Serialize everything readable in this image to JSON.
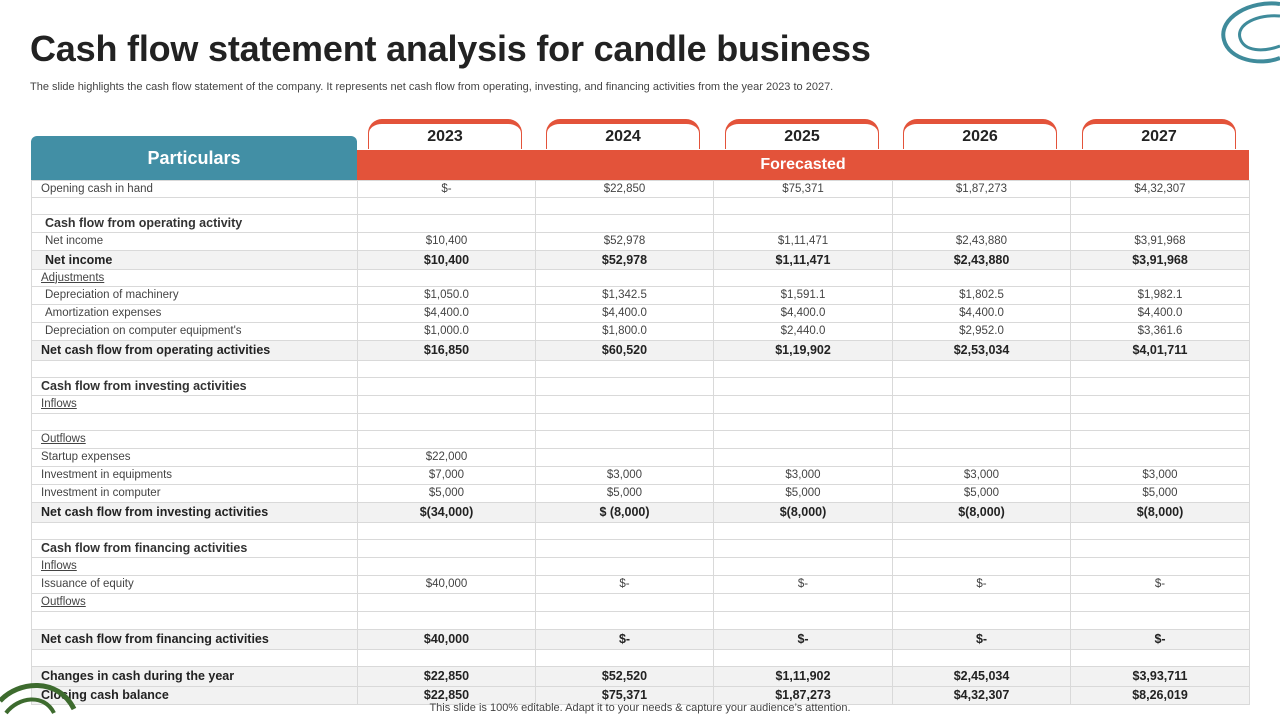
{
  "title": "Cash flow statement analysis for candle business",
  "subtitle": "The slide highlights the cash flow statement of the company. It represents net cash flow from operating, investing, and financing activities from the year 2023 to 2027.",
  "footer": "This slide is 100% editable. Adapt it to your needs & capture your audience’s attention.",
  "header": {
    "particulars": "Particulars",
    "forecasted": "Forecasted",
    "years": [
      "2023",
      "2024",
      "2025",
      "2026",
      "2027"
    ]
  },
  "colors": {
    "accent": "#e3533a",
    "teal": "#428fa5",
    "deco_green": "#3d6b2e"
  },
  "rows": [
    {
      "style": "normal",
      "label": "Opening cash in hand",
      "values": [
        "$-",
        "$22,850",
        "$75,371",
        "$1,87,273",
        "$4,32,307"
      ]
    },
    {
      "style": "blank",
      "label": "",
      "values": [
        "",
        "",
        "",
        "",
        ""
      ]
    },
    {
      "style": "sect-ind",
      "label": "Cash flow from operating activity",
      "values": [
        "",
        "",
        "",
        "",
        ""
      ]
    },
    {
      "style": "normal-ind",
      "label": "Net income",
      "values": [
        "$10,400",
        "$52,978",
        "$1,11,471",
        "$2,43,880",
        "$3,91,968"
      ]
    },
    {
      "style": "bold-ind",
      "label": "Net income",
      "values": [
        "$10,400",
        "$52,978",
        "$1,11,471",
        "$2,43,880",
        "$3,91,968"
      ]
    },
    {
      "style": "ul",
      "label": "Adjustments",
      "values": [
        "",
        "",
        "",
        "",
        ""
      ]
    },
    {
      "style": "normal-ind",
      "label": "Depreciation of machinery",
      "values": [
        "$1,050.0",
        "$1,342.5",
        "$1,591.1",
        "$1,802.5",
        "$1,982.1"
      ]
    },
    {
      "style": "normal-ind",
      "label": "Amortization expenses",
      "values": [
        "$4,400.0",
        "$4,400.0",
        "$4,400.0",
        "$4,400.0",
        "$4,400.0"
      ]
    },
    {
      "style": "normal-ind",
      "label": "Depreciation on computer equipment's",
      "values": [
        "$1,000.0",
        "$1,800.0",
        "$2,440.0",
        "$2,952.0",
        "$3,361.6"
      ]
    },
    {
      "style": "bold",
      "label": "Net cash flow from operating activities",
      "values": [
        "$16,850",
        "$60,520",
        "$1,19,902",
        "$2,53,034",
        "$4,01,711"
      ]
    },
    {
      "style": "blank",
      "label": "",
      "values": [
        "",
        "",
        "",
        "",
        ""
      ]
    },
    {
      "style": "sect",
      "label": "Cash flow from investing activities",
      "values": [
        "",
        "",
        "",
        "",
        ""
      ]
    },
    {
      "style": "ul",
      "label": "Inflows",
      "values": [
        "",
        "",
        "",
        "",
        ""
      ]
    },
    {
      "style": "blank",
      "label": "",
      "values": [
        "",
        "",
        "",
        "",
        ""
      ]
    },
    {
      "style": "ul",
      "label": "Outflows",
      "values": [
        "",
        "",
        "",
        "",
        ""
      ]
    },
    {
      "style": "normal",
      "label": "Startup expenses",
      "values": [
        "$22,000",
        "",
        "",
        "",
        ""
      ]
    },
    {
      "style": "normal",
      "label": "Investment in equipments",
      "values": [
        "$7,000",
        "$3,000",
        "$3,000",
        "$3,000",
        "$3,000"
      ]
    },
    {
      "style": "normal",
      "label": "Investment in computer",
      "values": [
        "$5,000",
        "$5,000",
        "$5,000",
        "$5,000",
        "$5,000"
      ]
    },
    {
      "style": "bold",
      "label": "Net cash flow from investing activities",
      "values": [
        "$(34,000)",
        "$ (8,000)",
        "$(8,000)",
        "$(8,000)",
        "$(8,000)"
      ]
    },
    {
      "style": "blank",
      "label": "",
      "values": [
        "",
        "",
        "",
        "",
        ""
      ]
    },
    {
      "style": "sect",
      "label": "Cash flow from financing activities",
      "values": [
        "",
        "",
        "",
        "",
        ""
      ]
    },
    {
      "style": "ul",
      "label": "Inflows",
      "values": [
        "",
        "",
        "",
        "",
        ""
      ]
    },
    {
      "style": "normal",
      "label": "Issuance of equity",
      "values": [
        "$40,000",
        "$-",
        "$-",
        "$-",
        "$-"
      ]
    },
    {
      "style": "ul",
      "label": "Outflows",
      "values": [
        "",
        "",
        "",
        "",
        ""
      ]
    },
    {
      "style": "blank",
      "label": "",
      "values": [
        "",
        "",
        "",
        "",
        ""
      ]
    },
    {
      "style": "bold",
      "label": "Net cash flow from financing activities",
      "values": [
        "$40,000",
        "$-",
        "$-",
        "$-",
        "$-"
      ]
    },
    {
      "style": "blank",
      "label": "",
      "values": [
        "",
        "",
        "",
        "",
        ""
      ]
    },
    {
      "style": "bold",
      "label": "Changes in cash during the year",
      "values": [
        "$22,850",
        "$52,520",
        "$1,11,902",
        "$2,45,034",
        "$3,93,711"
      ]
    },
    {
      "style": "bold",
      "label": "Closing cash balance",
      "values": [
        "$22,850",
        "$75,371",
        "$1,87,273",
        "$4,32,307",
        "$8,26,019"
      ]
    }
  ]
}
